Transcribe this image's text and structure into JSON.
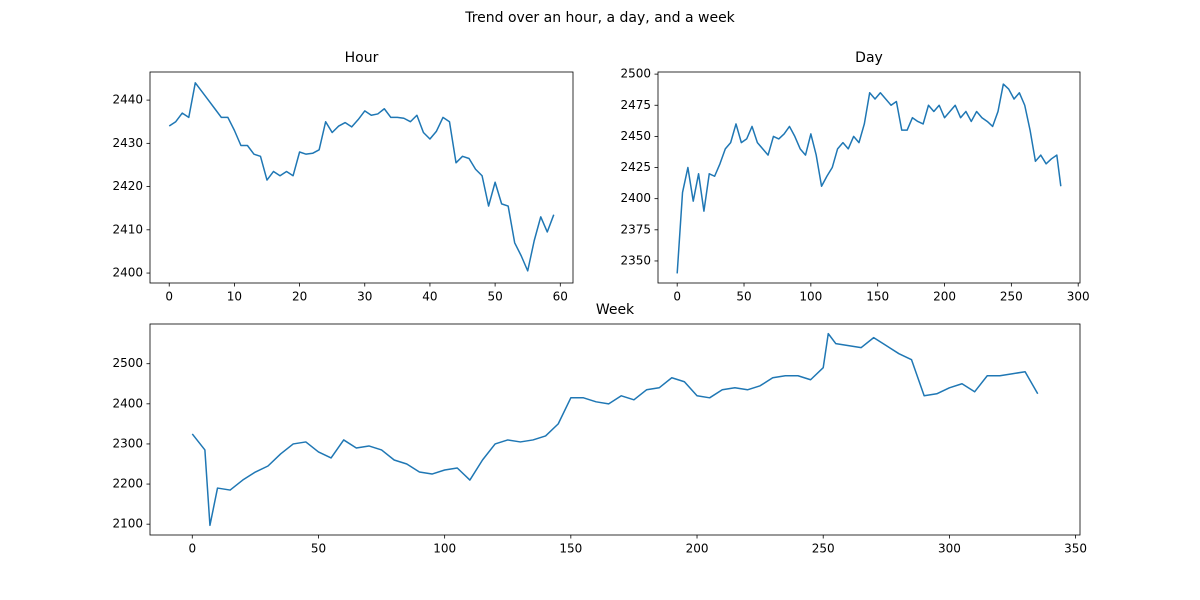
{
  "title": "Trend over an hour, a day, and a week",
  "chart_data": [
    {
      "type": "line",
      "title": "Hour",
      "color": "#1f77b4",
      "x": [
        0,
        1,
        2,
        3,
        4,
        5,
        6,
        7,
        8,
        9,
        10,
        11,
        12,
        13,
        14,
        15,
        16,
        17,
        18,
        19,
        20,
        21,
        22,
        23,
        24,
        25,
        26,
        27,
        28,
        29,
        30,
        31,
        32,
        33,
        34,
        35,
        36,
        37,
        38,
        39,
        40,
        41,
        42,
        43,
        44,
        45,
        46,
        47,
        48,
        49,
        50,
        51,
        52,
        53,
        54,
        55,
        56,
        57,
        58,
        59
      ],
      "values": [
        2434,
        2435,
        2437,
        2436,
        2444,
        2442,
        2440,
        2438,
        2436,
        2436,
        2433,
        2429.5,
        2429.5,
        2427.5,
        2427,
        2421.5,
        2423.5,
        2422.5,
        2423.5,
        2422.5,
        2428,
        2427.5,
        2427.7,
        2428.5,
        2435,
        2432.5,
        2434,
        2434.8,
        2433.8,
        2435.5,
        2437.5,
        2436.5,
        2436.8,
        2438,
        2436,
        2436,
        2435.8,
        2435,
        2436.5,
        2432.5,
        2431,
        2432.8,
        2436,
        2435,
        2425.5,
        2427,
        2426.5,
        2424,
        2422.5,
        2415.5,
        2421,
        2416,
        2415.5,
        2407,
        2404,
        2400.5,
        2407.5,
        2413,
        2409.5,
        2413.5
      ],
      "xlim": [
        -2.95,
        61.95
      ],
      "ylim": [
        2397.7,
        2446.5
      ],
      "xticks": [
        0,
        10,
        20,
        30,
        40,
        50,
        60
      ],
      "yticks": [
        2400,
        2410,
        2420,
        2430,
        2440
      ]
    },
    {
      "type": "line",
      "title": "Day",
      "color": "#1f77b4",
      "x": [
        0,
        4,
        8,
        12,
        16,
        20,
        24,
        28,
        32,
        36,
        40,
        44,
        48,
        52,
        56,
        60,
        64,
        68,
        72,
        76,
        80,
        84,
        88,
        92,
        96,
        100,
        104,
        108,
        112,
        116,
        120,
        124,
        128,
        132,
        136,
        140,
        144,
        148,
        152,
        156,
        160,
        164,
        168,
        172,
        176,
        180,
        184,
        188,
        192,
        196,
        200,
        204,
        208,
        212,
        216,
        220,
        224,
        228,
        232,
        236,
        240,
        244,
        248,
        252,
        256,
        260,
        264,
        268,
        272,
        276,
        280,
        284,
        287
      ],
      "values": [
        2340,
        2405,
        2425,
        2398,
        2420,
        2390,
        2420,
        2418,
        2428,
        2440,
        2445,
        2460,
        2445,
        2448,
        2458,
        2445,
        2440,
        2435,
        2450,
        2448,
        2452,
        2458,
        2450,
        2440,
        2435,
        2452,
        2435,
        2410,
        2418,
        2425,
        2440,
        2445,
        2440,
        2450,
        2445,
        2460,
        2485,
        2480,
        2485,
        2480,
        2475,
        2478,
        2455,
        2455,
        2465,
        2462,
        2460,
        2475,
        2470,
        2475,
        2465,
        2470,
        2475,
        2465,
        2470,
        2462,
        2470,
        2465,
        2462,
        2458,
        2470,
        2492,
        2488,
        2480,
        2485,
        2475,
        2455,
        2430,
        2435,
        2428,
        2432,
        2435,
        2410
      ],
      "xlim": [
        -14.35,
        301.35
      ],
      "ylim": [
        2332.3,
        2501.7
      ],
      "xticks": [
        0,
        50,
        100,
        150,
        200,
        250,
        300
      ],
      "yticks": [
        2350,
        2375,
        2400,
        2425,
        2450,
        2475,
        2500
      ]
    },
    {
      "type": "line",
      "title": "Week",
      "color": "#1f77b4",
      "x": [
        0,
        5,
        7,
        10,
        15,
        20,
        25,
        30,
        35,
        40,
        45,
        50,
        55,
        60,
        65,
        70,
        75,
        80,
        85,
        90,
        95,
        100,
        105,
        110,
        115,
        120,
        125,
        130,
        135,
        140,
        145,
        150,
        155,
        160,
        165,
        170,
        175,
        180,
        185,
        190,
        195,
        200,
        205,
        210,
        215,
        220,
        225,
        230,
        235,
        240,
        245,
        250,
        252,
        255,
        260,
        265,
        270,
        275,
        280,
        285,
        290,
        295,
        300,
        305,
        310,
        315,
        320,
        325,
        330,
        335
      ],
      "values": [
        2325,
        2285,
        2097,
        2190,
        2185,
        2210,
        2230,
        2245,
        2275,
        2300,
        2305,
        2280,
        2265,
        2310,
        2290,
        2295,
        2285,
        2260,
        2250,
        2230,
        2225,
        2235,
        2240,
        2210,
        2260,
        2300,
        2310,
        2305,
        2310,
        2320,
        2350,
        2415,
        2415,
        2405,
        2400,
        2420,
        2410,
        2435,
        2440,
        2465,
        2455,
        2420,
        2415,
        2435,
        2440,
        2435,
        2445,
        2465,
        2470,
        2470,
        2460,
        2490,
        2575,
        2550,
        2545,
        2540,
        2565,
        2545,
        2525,
        2510,
        2420,
        2425,
        2440,
        2450,
        2430,
        2470,
        2470,
        2475,
        2480,
        2425
      ],
      "xlim": [
        -16.75,
        351.75
      ],
      "ylim": [
        2073,
        2599
      ],
      "xticks": [
        0,
        50,
        100,
        150,
        200,
        250,
        300,
        350
      ],
      "yticks": [
        2100,
        2200,
        2300,
        2400,
        2500
      ]
    }
  ]
}
